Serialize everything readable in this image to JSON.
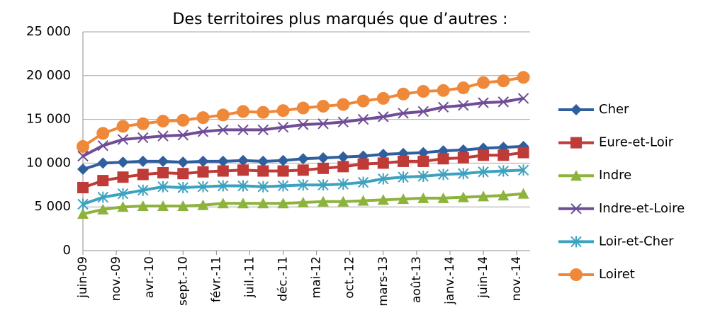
{
  "chart_data": {
    "type": "line",
    "title": "Des territoires plus marqués que d’autres :",
    "x": [
      "2009-06",
      "2009-09",
      "2009-12",
      "2010-03",
      "2010-06",
      "2010-09",
      "2010-12",
      "2011-03",
      "2011-06",
      "2011-09",
      "2011-12",
      "2012-03",
      "2012-06",
      "2012-09",
      "2012-12",
      "2013-03",
      "2013-06",
      "2013-09",
      "2013-12",
      "2014-03",
      "2014-06",
      "2014-09",
      "2014-12"
    ],
    "xlim": [
      "2009-06",
      "2015-01"
    ],
    "xticks": [
      {
        "value": "2009-06",
        "label": "juin-09"
      },
      {
        "value": "2009-11",
        "label": "nov.-09"
      },
      {
        "value": "2010-04",
        "label": "avr.-10"
      },
      {
        "value": "2010-09",
        "label": "sept.-10"
      },
      {
        "value": "2011-02",
        "label": "févr.-11"
      },
      {
        "value": "2011-07",
        "label": "juil.-11"
      },
      {
        "value": "2011-12",
        "label": "déc.-11"
      },
      {
        "value": "2012-05",
        "label": "mai-12"
      },
      {
        "value": "2012-10",
        "label": "oct.-12"
      },
      {
        "value": "2013-03",
        "label": "mars-13"
      },
      {
        "value": "2013-08",
        "label": "août-13"
      },
      {
        "value": "2014-01",
        "label": "janv.-14"
      },
      {
        "value": "2014-06",
        "label": "juin-14"
      },
      {
        "value": "2014-11",
        "label": "nov.-14"
      }
    ],
    "ylim": [
      0,
      25000
    ],
    "yticks": [
      0,
      {
        "value": 5000,
        "label": "5 000"
      },
      {
        "value": 10000,
        "label": "10 000"
      },
      {
        "value": 15000,
        "label": "15 000"
      },
      {
        "value": 20000,
        "label": "20 000"
      },
      {
        "value": 25000,
        "label": "25 000"
      }
    ],
    "grid": true,
    "legend": "right",
    "series": [
      {
        "name": "Cher",
        "color": "#2f5f9e",
        "marker": "diamond",
        "values": [
          9300,
          10000,
          10100,
          10200,
          10200,
          10100,
          10200,
          10200,
          10300,
          10200,
          10300,
          10500,
          10600,
          10700,
          10800,
          11000,
          11100,
          11200,
          11400,
          11500,
          11700,
          11800,
          11900
        ]
      },
      {
        "name": "Eure-et-Loir",
        "color": "#be3b38",
        "marker": "square",
        "values": [
          7200,
          8000,
          8400,
          8700,
          8900,
          8800,
          9000,
          9100,
          9200,
          9100,
          9100,
          9200,
          9400,
          9600,
          9900,
          10000,
          10200,
          10200,
          10500,
          10600,
          10900,
          10900,
          11200
        ]
      },
      {
        "name": "Indre",
        "color": "#8db33c",
        "marker": "triangle",
        "values": [
          4200,
          4700,
          5000,
          5100,
          5100,
          5100,
          5200,
          5400,
          5400,
          5400,
          5400,
          5500,
          5600,
          5600,
          5700,
          5800,
          5900,
          6000,
          6000,
          6100,
          6200,
          6300,
          6500
        ]
      },
      {
        "name": "Indre-et-Loire",
        "color": "#6f4d96",
        "marker": "x",
        "values": [
          10800,
          12000,
          12700,
          12900,
          13100,
          13200,
          13600,
          13800,
          13800,
          13800,
          14100,
          14400,
          14500,
          14700,
          15000,
          15300,
          15700,
          15900,
          16400,
          16600,
          16900,
          17000,
          17400
        ]
      },
      {
        "name": "Loir-et-Cher",
        "color": "#3da2bf",
        "marker": "star",
        "values": [
          5300,
          6100,
          6500,
          6900,
          7300,
          7200,
          7300,
          7400,
          7400,
          7300,
          7400,
          7500,
          7500,
          7600,
          7800,
          8200,
          8400,
          8500,
          8700,
          8800,
          9000,
          9100,
          9200
        ]
      },
      {
        "name": "Loiret",
        "color": "#f0883a",
        "marker": "circle",
        "values": [
          11900,
          13400,
          14200,
          14500,
          14800,
          14900,
          15200,
          15500,
          15900,
          15800,
          16000,
          16300,
          16500,
          16700,
          17100,
          17400,
          17900,
          18200,
          18300,
          18600,
          19200,
          19400,
          19800
        ]
      }
    ]
  }
}
